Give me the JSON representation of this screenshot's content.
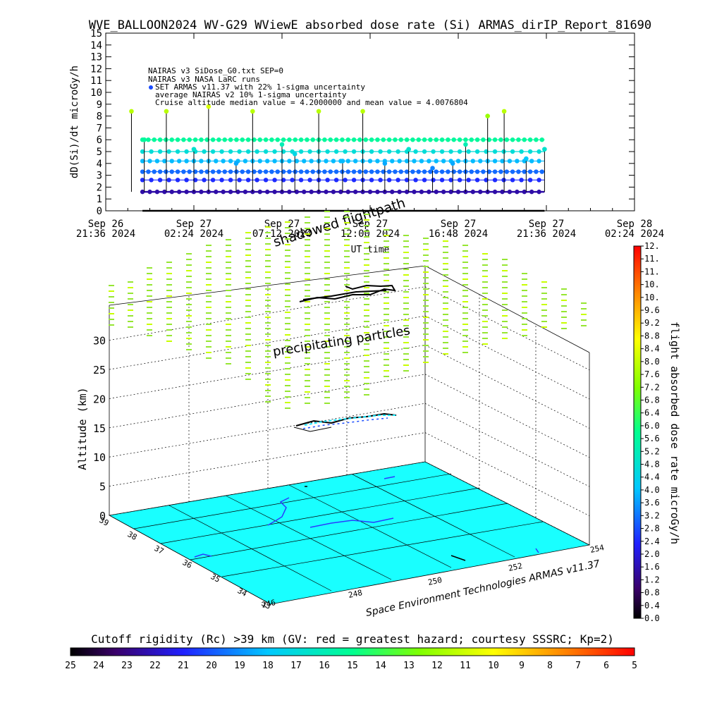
{
  "chart_data": [
    {
      "type": "scatter",
      "title": "WVE_BALLOON2024 WV-G29 WViewE absorbed dose rate (Si) ARMAS_dirIP_Report_81690",
      "xlabel": "UT time",
      "ylabel": "dD(Si)/dt microGy/h",
      "ylim": [
        0,
        15
      ],
      "y_ticks": [
        "0",
        "1",
        "2",
        "3",
        "4",
        "5",
        "6",
        "7",
        "8",
        "9",
        "10",
        "11",
        "12",
        "13",
        "14",
        "15"
      ],
      "x_ticks": [
        {
          "day": "Sep 26",
          "time": "21:36 2024"
        },
        {
          "day": "Sep 27",
          "time": "02:24 2024"
        },
        {
          "day": "Sep 27",
          "time": "07:12 2024"
        },
        {
          "day": "Sep 27",
          "time": "12:00 2024"
        },
        {
          "day": "Sep 27",
          "time": "16:48 2024"
        },
        {
          "day": "Sep 27",
          "time": "21:36 2024"
        },
        {
          "day": "Sep 28",
          "time": "02:24 2024"
        }
      ],
      "legend": [
        "NAIRAS v3 SiDose_G0.txt SEP=0",
        "NAIRAS v3 NASA LaRC runs",
        "SET ARMAS v11.37 with 22% 1-sigma uncertainty",
        "average NAIRAS v2 10% 1-sigma uncertainty",
        "Cruise altitude median value = 4.2000000 and mean value = 4.0076804"
      ],
      "legend_placement": "top-left",
      "annotations": [
        "shadowed flightpath"
      ],
      "series": [
        {
          "x_hours_after_first_tick": [
            1.4,
            2.1,
            3.3,
            4.8,
            5.6,
            7.1,
            8.0,
            9.6,
            10.3,
            11.6,
            12.9,
            14.0,
            15.2,
            16.5,
            17.8,
            18.9,
            19.6,
            20.8,
            21.7,
            22.9,
            23.9
          ],
          "values": [
            8.4,
            6.0,
            8.4,
            5.2,
            8.8,
            4.0,
            8.4,
            5.6,
            4.8,
            8.4,
            4.2,
            8.4,
            4.0,
            5.2,
            3.6,
            4.0,
            5.6,
            8.0,
            8.4,
            4.4,
            5.2
          ]
        }
      ],
      "series_levels": [
        0,
        1.6,
        2.6,
        3.3,
        4.2,
        5.0,
        6.0
      ]
    },
    {
      "type": "scatter",
      "ylabel": "Altitude (km)",
      "z_ticks": [
        "0",
        "5",
        "10",
        "15",
        "20",
        "25",
        "30"
      ],
      "lat_ticks": [
        "39",
        "38",
        "37",
        "36",
        "35",
        "34",
        "33"
      ],
      "lon_ticks": [
        "246",
        "248",
        "250",
        "252",
        "254"
      ],
      "annotations": [
        "precipitating particles"
      ],
      "footer": "Space Environment Technologies ARMAS v11.37",
      "colorbar_label": "flight absorbed dose rate microGy/h",
      "colorbar_ticks": [
        "0.0",
        "0.4",
        "0.8",
        "1.2",
        "1.6",
        "2.0",
        "2.4",
        "2.8",
        "3.2",
        "3.6",
        "4.0",
        "4.4",
        "4.8",
        "5.2",
        "5.6",
        "6.0",
        "6.4",
        "6.8",
        "7.2",
        "7.6",
        "8.0",
        "8.4",
        "8.8",
        "9.2",
        "9.6",
        "10.",
        "10.",
        "11.",
        "11.",
        "12."
      ],
      "colorbar_range": [
        0,
        12.4
      ]
    },
    {
      "type": "heatmap",
      "title": "Cutoff rigidity (Rc) >39 km (GV: red = greatest hazard; courtesy SSSRC; Kp=2)",
      "scale_ticks": [
        "25",
        "24",
        "23",
        "22",
        "21",
        "20",
        "19",
        "18",
        "17",
        "16",
        "15",
        "14",
        "13",
        "12",
        "11",
        "10",
        "9",
        "8",
        "7",
        "6",
        "5"
      ],
      "range": [
        25,
        5
      ]
    }
  ]
}
